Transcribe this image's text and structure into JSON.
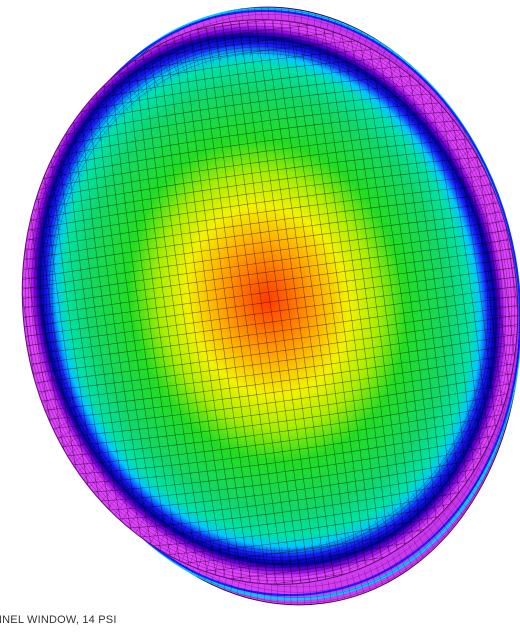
{
  "caption": "NNEL WINDOW, 14 PSI",
  "colors": {
    "background": "#ffffff",
    "rim_outer": "#e040ff",
    "rim_side": "#d23cf0",
    "edge_blue": "#1a1aff",
    "edge_navy": "#0000a0",
    "cyan": "#00c8ff",
    "green": "#22dd22",
    "yellow": "#f2f200",
    "orange": "#ff8c00",
    "red": "#ff4000",
    "mesh": "#000000"
  }
}
